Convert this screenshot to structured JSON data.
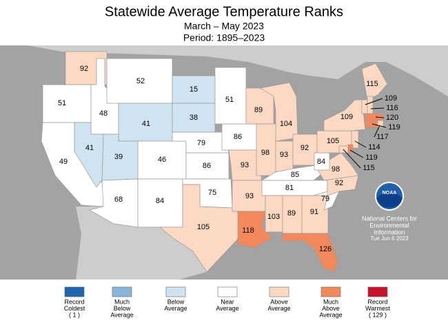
{
  "header": {
    "title": "Statewide Average Temperature Ranks",
    "subtitle": "March – May 2023",
    "period": "Period: 1895–2023"
  },
  "states": [
    {
      "rank": 92,
      "color": "#fdd9c4"
    },
    {
      "rank": 51,
      "color": "#ffffff"
    },
    {
      "rank": 49,
      "color": "#ffffff"
    },
    {
      "rank": 48,
      "color": "#ffffff"
    },
    {
      "rank": 41,
      "color": "#cfe3f1"
    },
    {
      "rank": 52,
      "color": "#ffffff"
    },
    {
      "rank": 41,
      "color": "#cfe3f1"
    },
    {
      "rank": 39,
      "color": "#cfe3f1"
    },
    {
      "rank": 46,
      "color": "#ffffff"
    },
    {
      "rank": 68,
      "color": "#ffffff"
    },
    {
      "rank": 84,
      "color": "#ffffff"
    },
    {
      "rank": 15,
      "color": "#cfe3f1"
    },
    {
      "rank": 38,
      "color": "#cfe3f1"
    },
    {
      "rank": 79,
      "color": "#ffffff"
    },
    {
      "rank": 86,
      "color": "#ffffff"
    },
    {
      "rank": 75,
      "color": "#ffffff"
    },
    {
      "rank": 105,
      "color": "#fdd9c4"
    },
    {
      "rank": 51,
      "color": "#ffffff"
    },
    {
      "rank": 86,
      "color": "#ffffff"
    },
    {
      "rank": 93,
      "color": "#fdd9c4"
    },
    {
      "rank": 93,
      "color": "#fdd9c4"
    },
    {
      "rank": 118,
      "color": "#f4885d"
    },
    {
      "rank": 89,
      "color": "#fdd9c4"
    },
    {
      "rank": 104,
      "color": "#fdd9c4"
    },
    {
      "rank": 98,
      "color": "#fdd9c4"
    },
    {
      "rank": 93,
      "color": "#fdd9c4"
    },
    {
      "rank": 92,
      "color": "#fdd9c4"
    },
    {
      "rank": 85,
      "color": "#ffffff"
    },
    {
      "rank": 81,
      "color": "#ffffff"
    },
    {
      "rank": 103,
      "color": "#fdd9c4"
    },
    {
      "rank": 89,
      "color": "#fdd9c4"
    },
    {
      "rank": 91,
      "color": "#fdd9c4"
    },
    {
      "rank": 126,
      "color": "#f4885d"
    },
    {
      "rank": 79,
      "color": "#ffffff"
    },
    {
      "rank": 92,
      "color": "#fdd9c4"
    },
    {
      "rank": 98,
      "color": "#fdd9c4"
    },
    {
      "rank": 84,
      "color": "#ffffff"
    },
    {
      "rank": 105,
      "color": "#fdd9c4"
    },
    {
      "rank": 109,
      "color": "#fdd9c4"
    },
    {
      "rank": 115,
      "color": "#fdd9c4"
    },
    {
      "rank": 109,
      "color": "#fdd9c4"
    },
    {
      "rank": 116,
      "color": "#fdd9c4"
    },
    {
      "rank": 120,
      "color": "#f4885d"
    },
    {
      "rank": 119,
      "color": "#f4885d"
    },
    {
      "rank": 117,
      "color": "#fdd9c4"
    },
    {
      "rank": 114,
      "color": "#fdd9c4"
    },
    {
      "rank": 119,
      "color": "#f4885d"
    },
    {
      "rank": 115,
      "color": "#fdd9c4"
    }
  ],
  "legend": [
    {
      "lines": [
        "Record",
        "Coldest",
        "( 1 )"
      ],
      "color": "#2166ac"
    },
    {
      "lines": [
        "Much",
        "Below",
        "Average"
      ],
      "color": "#86b5d9"
    },
    {
      "lines": [
        "Below",
        "Average"
      ],
      "color": "#cfe3f1"
    },
    {
      "lines": [
        "Near",
        "Average"
      ],
      "color": "#ffffff"
    },
    {
      "lines": [
        "Above",
        "Average"
      ],
      "color": "#fdd9c4"
    },
    {
      "lines": [
        "Much",
        "Above",
        "Average"
      ],
      "color": "#f4885d"
    },
    {
      "lines": [
        "Record",
        "Warmest",
        "( 129 )"
      ],
      "color": "#c6152d"
    }
  ],
  "logo": {
    "text": "NOAA"
  },
  "credit": [
    "National Centers for",
    "Environmental",
    "Information",
    "Tue Jun  6 2023"
  ]
}
